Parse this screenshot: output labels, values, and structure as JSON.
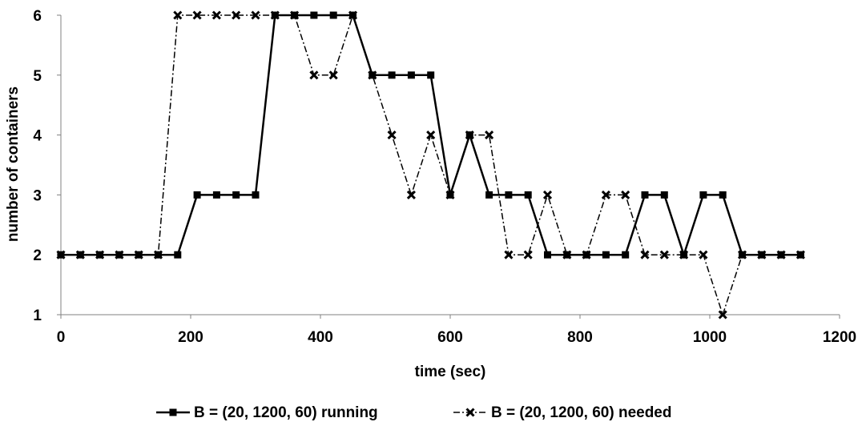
{
  "chart_data": {
    "type": "line",
    "title": "",
    "xlabel": "time (sec)",
    "ylabel": "number of containers",
    "xlim": [
      0,
      1200
    ],
    "ylim": [
      1,
      6
    ],
    "x_ticks": [
      0,
      200,
      400,
      600,
      800,
      1000,
      1200
    ],
    "y_ticks": [
      1,
      2,
      3,
      4,
      5,
      6
    ],
    "grid": false,
    "legend_position": "bottom",
    "series": [
      {
        "name": "B = (20, 1200, 60) running",
        "marker": "square",
        "line_style": "solid",
        "color": "#000000",
        "x": [
          0,
          30,
          60,
          90,
          120,
          150,
          180,
          210,
          240,
          270,
          300,
          330,
          360,
          390,
          420,
          450,
          480,
          510,
          540,
          570,
          600,
          630,
          660,
          690,
          720,
          750,
          780,
          810,
          840,
          870,
          900,
          930,
          960,
          990,
          1020,
          1050,
          1080,
          1110,
          1140
        ],
        "y": [
          2,
          2,
          2,
          2,
          2,
          2,
          2,
          3,
          3,
          3,
          3,
          6,
          6,
          6,
          6,
          6,
          5,
          5,
          5,
          5,
          3,
          4,
          3,
          3,
          3,
          2,
          2,
          2,
          2,
          2,
          3,
          3,
          2,
          3,
          3,
          2,
          2,
          2,
          2
        ]
      },
      {
        "name": "B = (20, 1200, 60) needed",
        "marker": "x",
        "line_style": "dashdot",
        "color": "#000000",
        "x": [
          0,
          30,
          60,
          90,
          120,
          150,
          180,
          210,
          240,
          270,
          300,
          330,
          360,
          390,
          420,
          450,
          480,
          510,
          540,
          570,
          600,
          630,
          660,
          690,
          720,
          750,
          780,
          810,
          840,
          870,
          900,
          930,
          960,
          990,
          1020,
          1050,
          1080,
          1110,
          1140
        ],
        "y": [
          2,
          2,
          2,
          2,
          2,
          2,
          6,
          6,
          6,
          6,
          6,
          6,
          6,
          5,
          5,
          6,
          5,
          4,
          3,
          4,
          3,
          4,
          4,
          2,
          2,
          3,
          2,
          2,
          3,
          3,
          2,
          2,
          2,
          2,
          1,
          2,
          2,
          2,
          2
        ]
      }
    ]
  }
}
